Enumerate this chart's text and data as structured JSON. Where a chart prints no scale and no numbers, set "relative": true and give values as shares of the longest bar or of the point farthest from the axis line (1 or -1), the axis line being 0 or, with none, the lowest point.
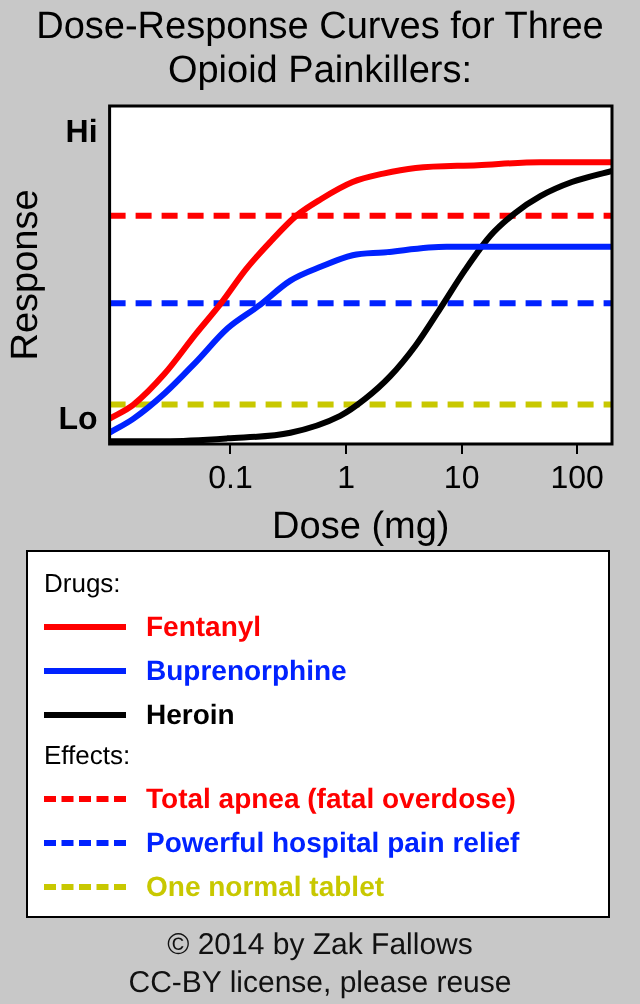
{
  "chart_data": {
    "type": "line",
    "title": "Dose-Response Curves for Three Opioid Painkillers:",
    "xlabel": "Dose (mg)",
    "ylabel": "Response",
    "log": "x",
    "xlim": [
      0.009,
      200
    ],
    "xticks": [
      0.1,
      1,
      10,
      100
    ],
    "relative": true,
    "grid": false,
    "legend": "bottom",
    "legend_title": "Drugs:",
    "marker": "none",
    "line_style": "solid",
    "series": [
      {
        "name": "Fentanyl",
        "color": "#ff0000",
        "x": [
          0.009,
          0.0145,
          0.027,
          0.05,
          0.083,
          0.136,
          0.224,
          0.37,
          0.61,
          1.14,
          2.1,
          4.0,
          13.8,
          48,
          200
        ],
        "values": [
          0.09,
          0.14,
          0.25,
          0.39,
          0.5,
          0.62,
          0.72,
          0.81,
          0.87,
          0.93,
          0.96,
          0.98,
          0.99,
          1,
          1
        ]
      },
      {
        "name": "Buprenorphine",
        "color": "#0022ff",
        "x": [
          0.009,
          0.0145,
          0.027,
          0.05,
          0.094,
          0.175,
          0.33,
          0.61,
          1.14,
          2.1,
          7.4,
          48,
          200
        ],
        "values": [
          0.04,
          0.09,
          0.18,
          0.29,
          0.41,
          0.49,
          0.58,
          0.63,
          0.67,
          0.68,
          0.7,
          0.7,
          0.7
        ]
      },
      {
        "name": "Heroin",
        "color": "#000000",
        "x": [
          0.009,
          0.027,
          0.094,
          0.33,
          0.89,
          1.46,
          2.4,
          4.0,
          6.5,
          10.8,
          17.8,
          29,
          48,
          90,
          200
        ],
        "values": [
          0.01,
          0.01,
          0.02,
          0.04,
          0.1,
          0.16,
          0.24,
          0.35,
          0.48,
          0.62,
          0.74,
          0.82,
          0.88,
          0.93,
          0.97
        ]
      }
    ],
    "ref_lines": [
      {
        "axis": "y",
        "value": 0.81,
        "label": "Total apnea (fatal overdose)",
        "color": "#ff0000",
        "line_style": "dashed"
      },
      {
        "axis": "y",
        "value": 0.5,
        "label": "Powerful hospital pain relief",
        "color": "#0022ff",
        "line_style": "dashed"
      },
      {
        "axis": "y",
        "value": 0.14,
        "label": "One normal tablet",
        "color": "#c8c800",
        "line_style": "dashed"
      }
    ],
    "annotations": [
      "Hi",
      "Lo",
      "Effects:",
      "© 2014 by Zak Fallows",
      "CC-BY license, please reuse"
    ]
  }
}
